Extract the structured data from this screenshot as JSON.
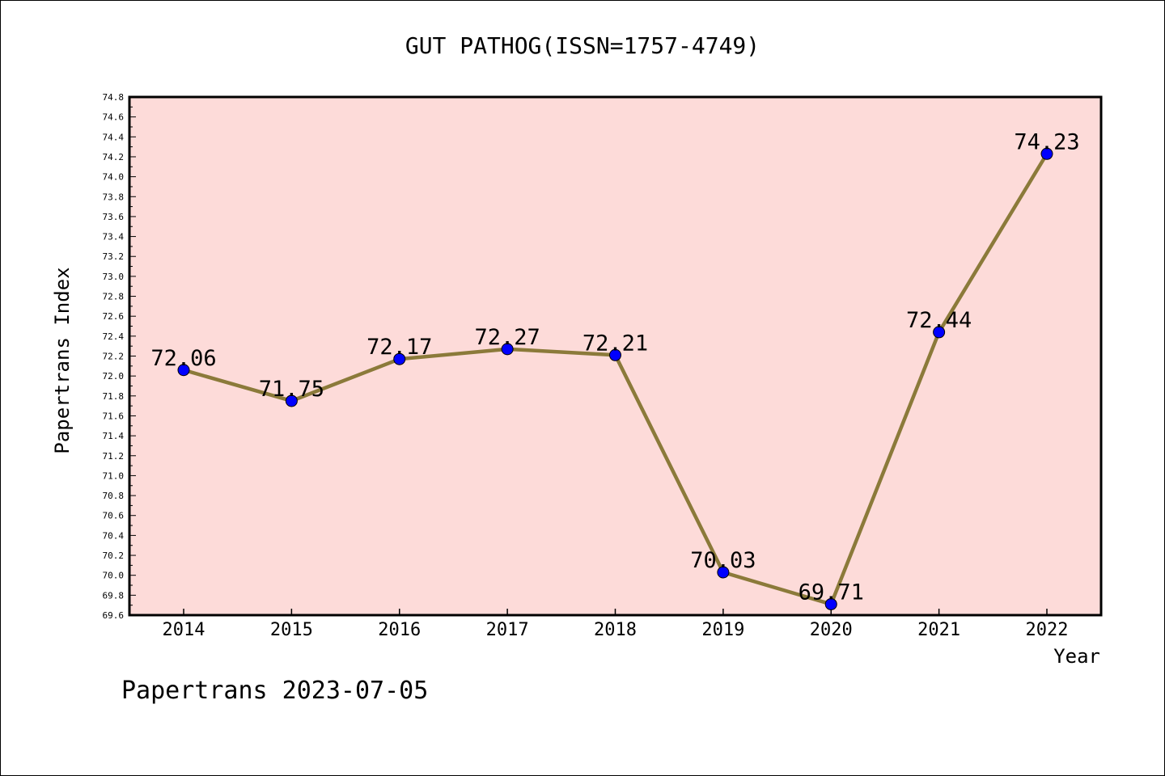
{
  "chart_data": {
    "type": "line",
    "title": "GUT PATHOG(ISSN=1757-4749)",
    "xlabel": "Year",
    "ylabel": "Papertrans Index",
    "footer": "Papertrans 2023-07-05",
    "categories": [
      "2014",
      "2015",
      "2016",
      "2017",
      "2018",
      "2019",
      "2020",
      "2021",
      "2022"
    ],
    "series": [
      {
        "values": [
          72.06,
          71.75,
          72.17,
          72.27,
          72.21,
          70.03,
          69.71,
          72.44,
          74.23
        ]
      }
    ],
    "data_labels": [
      "72.06",
      "71.75",
      "72.17",
      "72.27",
      "72.21",
      "70.03",
      "69.71",
      "72.44",
      "74.23"
    ],
    "ylim": [
      69.6,
      74.8
    ],
    "ytick_step": 0.2,
    "grid": false,
    "colors": {
      "plot_background": "#fddbd9",
      "line": "#8b7a3a",
      "marker": "#0000ff"
    }
  }
}
